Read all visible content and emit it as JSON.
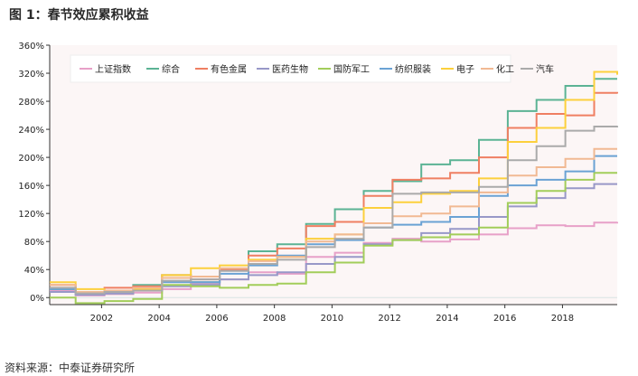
{
  "figure": {
    "title": "图 1：春节效应累积收益",
    "source": "资料来源：中泰证券研究所"
  },
  "chart_data": {
    "type": "line",
    "title": "",
    "xlabel": "",
    "ylabel": "",
    "xlim": [
      2000.2,
      2019.9
    ],
    "ylim": [
      -10,
      360
    ],
    "yticks": [
      0,
      40,
      80,
      120,
      160,
      200,
      240,
      280,
      320,
      360
    ],
    "yticklabels": [
      "0%",
      "40%",
      "80%",
      "120%",
      "160%",
      "200%",
      "240%",
      "280%",
      "320%",
      "360%"
    ],
    "xticks": [
      2002,
      2004,
      2006,
      2008,
      2010,
      2012,
      2014,
      2016,
      2018
    ],
    "xticklabels": [
      "2002",
      "2004",
      "2006",
      "2008",
      "2010",
      "2012",
      "2014",
      "2016",
      "2018"
    ],
    "grid": false,
    "legend_position": "top-left",
    "x": [
      2000.2,
      2001.1,
      2002.1,
      2003.1,
      2004.1,
      2005.1,
      2006.1,
      2007.1,
      2008.1,
      2009.1,
      2010.1,
      2011.1,
      2012.1,
      2013.1,
      2014.1,
      2015.1,
      2016.1,
      2017.1,
      2018.1,
      2019.1,
      2019.9
    ],
    "series": [
      {
        "name": "上证指数",
        "color": "#e7a0c8",
        "values": [
          10,
          3,
          5,
          7,
          12,
          20,
          26,
          36,
          34,
          58,
          64,
          78,
          84,
          80,
          83,
          90,
          99,
          103,
          102,
          107,
          108
        ]
      },
      {
        "name": "综合",
        "color": "#5bb394",
        "values": [
          12,
          5,
          6,
          18,
          32,
          22,
          40,
          66,
          76,
          105,
          126,
          152,
          166,
          190,
          196,
          225,
          266,
          282,
          302,
          312,
          312
        ]
      },
      {
        "name": "有色金属",
        "color": "#ef7f62",
        "values": [
          18,
          8,
          14,
          16,
          32,
          26,
          40,
          60,
          70,
          102,
          108,
          145,
          168,
          170,
          178,
          200,
          242,
          262,
          260,
          292,
          291
        ]
      },
      {
        "name": "医药生物",
        "color": "#9898c8",
        "values": [
          8,
          4,
          6,
          10,
          16,
          18,
          26,
          32,
          36,
          48,
          58,
          76,
          82,
          92,
          98,
          115,
          130,
          142,
          156,
          162,
          162
        ]
      },
      {
        "name": "国防军工",
        "color": "#a2cd5a",
        "values": [
          0,
          -8,
          -5,
          -2,
          18,
          16,
          14,
          18,
          20,
          36,
          50,
          74,
          82,
          86,
          90,
          100,
          135,
          152,
          168,
          178,
          178
        ]
      },
      {
        "name": "纺织服装",
        "color": "#6aa2d4",
        "values": [
          12,
          7,
          8,
          10,
          22,
          22,
          34,
          46,
          60,
          76,
          82,
          100,
          104,
          108,
          115,
          145,
          160,
          168,
          180,
          202,
          202
        ]
      },
      {
        "name": "电子",
        "color": "#fcd03c",
        "values": [
          22,
          12,
          10,
          12,
          32,
          42,
          46,
          54,
          58,
          84,
          90,
          128,
          136,
          148,
          152,
          170,
          222,
          242,
          282,
          322,
          318
        ]
      },
      {
        "name": "化工",
        "color": "#f1b993",
        "values": [
          18,
          8,
          10,
          14,
          28,
          30,
          42,
          52,
          58,
          80,
          90,
          106,
          116,
          120,
          130,
          150,
          174,
          186,
          198,
          212,
          212
        ]
      },
      {
        "name": "汽车",
        "color": "#aaaaaa",
        "values": [
          14,
          6,
          8,
          10,
          24,
          26,
          38,
          48,
          54,
          72,
          84,
          100,
          148,
          150,
          150,
          158,
          196,
          216,
          238,
          244,
          245
        ]
      }
    ]
  }
}
